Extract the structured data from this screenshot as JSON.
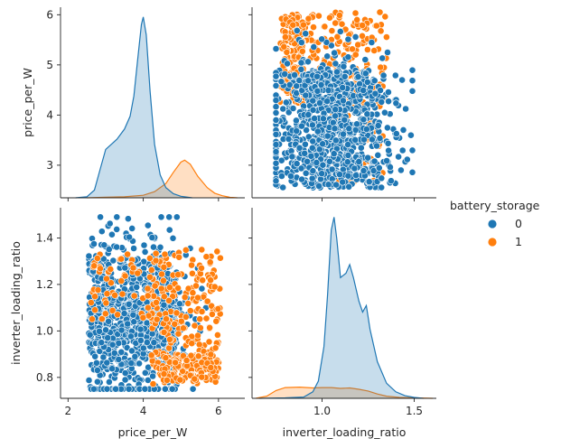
{
  "chart_data": {
    "type": "scatter",
    "subtype": "pairplot",
    "variables": [
      "price_per_W",
      "inverter_loading_ratio"
    ],
    "hue": "battery_storage",
    "legend": {
      "title": "battery_storage",
      "placement": "right",
      "entries": [
        {
          "label": "0",
          "color": "#1f77b4"
        },
        {
          "label": "1",
          "color": "#ff7f0e"
        }
      ]
    },
    "axes": {
      "price_per_W": {
        "label": "price_per_W",
        "range": [
          1.8,
          6.7
        ],
        "ticks": [
          2,
          4,
          6
        ],
        "ticks_on_y": [
          3,
          4,
          5,
          6
        ]
      },
      "inverter_loading_ratio": {
        "label": "inverter_loading_ratio",
        "range": [
          0.62,
          1.62
        ],
        "ticks": [
          1.0,
          1.5
        ],
        "ticks_on_y": [
          0.8,
          1.0,
          1.2,
          1.4
        ]
      }
    },
    "scatter_y_range": {
      "price_per_W": [
        2.35,
        6.15
      ],
      "inverter_loading_ratio": [
        0.71,
        1.53
      ]
    },
    "distributions": {
      "price_per_W": {
        "0": [
          [
            2.2,
            0
          ],
          [
            2.5,
            0.02
          ],
          [
            2.7,
            0.15
          ],
          [
            2.85,
            0.55
          ],
          [
            3.0,
            0.95
          ],
          [
            3.15,
            1.05
          ],
          [
            3.3,
            1.15
          ],
          [
            3.5,
            1.35
          ],
          [
            3.65,
            1.6
          ],
          [
            3.75,
            2.0
          ],
          [
            3.85,
            2.7
          ],
          [
            3.95,
            3.4
          ],
          [
            4.0,
            3.55
          ],
          [
            4.08,
            3.2
          ],
          [
            4.18,
            2.1
          ],
          [
            4.3,
            1.05
          ],
          [
            4.45,
            0.45
          ],
          [
            4.6,
            0.2
          ],
          [
            4.8,
            0.08
          ],
          [
            5.0,
            0.03
          ],
          [
            5.3,
            0.0
          ]
        ],
        "1": [
          [
            2.5,
            0
          ],
          [
            3.0,
            0.01
          ],
          [
            3.5,
            0.02
          ],
          [
            4.0,
            0.05
          ],
          [
            4.3,
            0.12
          ],
          [
            4.6,
            0.28
          ],
          [
            4.8,
            0.5
          ],
          [
            5.0,
            0.7
          ],
          [
            5.1,
            0.74
          ],
          [
            5.25,
            0.66
          ],
          [
            5.45,
            0.42
          ],
          [
            5.7,
            0.2
          ],
          [
            5.9,
            0.09
          ],
          [
            6.1,
            0.04
          ],
          [
            6.3,
            0.01
          ],
          [
            6.5,
            0.0
          ]
        ]
      },
      "inverter_loading_ratio": {
        "0": [
          [
            0.66,
            0
          ],
          [
            0.8,
            0.01
          ],
          [
            0.9,
            0.03
          ],
          [
            0.95,
            0.15
          ],
          [
            0.98,
            0.4
          ],
          [
            1.01,
            1.2
          ],
          [
            1.03,
            2.4
          ],
          [
            1.05,
            3.9
          ],
          [
            1.065,
            4.2
          ],
          [
            1.08,
            3.7
          ],
          [
            1.1,
            2.8
          ],
          [
            1.13,
            2.9
          ],
          [
            1.15,
            3.1
          ],
          [
            1.17,
            2.8
          ],
          [
            1.2,
            2.25
          ],
          [
            1.22,
            2.0
          ],
          [
            1.24,
            2.15
          ],
          [
            1.26,
            1.6
          ],
          [
            1.3,
            0.85
          ],
          [
            1.35,
            0.35
          ],
          [
            1.4,
            0.15
          ],
          [
            1.45,
            0.06
          ],
          [
            1.5,
            0.02
          ],
          [
            1.55,
            0
          ]
        ],
        "1": [
          [
            0.64,
            0
          ],
          [
            0.7,
            0.05
          ],
          [
            0.75,
            0.18
          ],
          [
            0.8,
            0.25
          ],
          [
            0.88,
            0.26
          ],
          [
            0.95,
            0.24
          ],
          [
            1.0,
            0.25
          ],
          [
            1.05,
            0.25
          ],
          [
            1.1,
            0.23
          ],
          [
            1.15,
            0.24
          ],
          [
            1.2,
            0.21
          ],
          [
            1.25,
            0.17
          ],
          [
            1.3,
            0.1
          ],
          [
            1.35,
            0.05
          ],
          [
            1.42,
            0.02
          ],
          [
            1.5,
            0.01
          ],
          [
            1.6,
            0
          ]
        ]
      }
    }
  }
}
